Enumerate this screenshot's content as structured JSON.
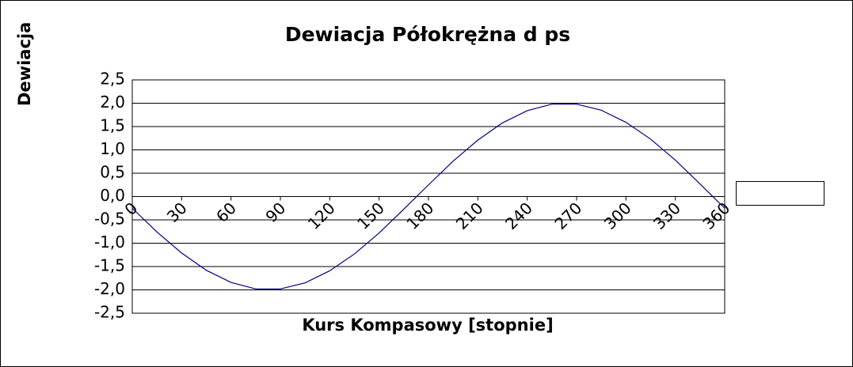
{
  "chart_data": {
    "type": "line",
    "title": "Dewiacja Półokrężna   d ps",
    "x_label": "Kurs Kompasowy  [stopnie]",
    "y_label": "Dewiacja",
    "x": [
      0,
      15,
      30,
      45,
      60,
      75,
      90,
      105,
      120,
      135,
      150,
      165,
      180,
      195,
      210,
      225,
      240,
      255,
      270,
      285,
      300,
      315,
      330,
      345,
      360
    ],
    "series": [
      {
        "color": "#000080",
        "values": [
          -0.25,
          -0.76,
          -1.21,
          -1.58,
          -1.84,
          -1.98,
          -1.98,
          -1.85,
          -1.59,
          -1.23,
          -0.78,
          -0.27,
          0.25,
          0.76,
          1.21,
          1.58,
          1.84,
          1.98,
          1.98,
          1.85,
          1.59,
          1.23,
          0.78,
          0.27,
          -0.25
        ]
      }
    ],
    "xlim": [
      0,
      360
    ],
    "xticks": [
      0,
      30,
      60,
      90,
      120,
      150,
      180,
      210,
      240,
      270,
      300,
      330,
      360
    ],
    "ylim": [
      -2.5,
      2.5
    ],
    "yticks": [
      {
        "value": -2.5,
        "label": "-2,5"
      },
      {
        "value": -2,
        "label": "-2,0"
      },
      {
        "value": -1.5,
        "label": "-1,5"
      },
      {
        "value": -1,
        "label": "-1,0"
      },
      {
        "value": -0.5,
        "label": "-0,5"
      },
      {
        "value": 0,
        "label": "0,0"
      },
      {
        "value": 0.5,
        "label": "0,5"
      },
      {
        "value": 1,
        "label": "1,0"
      },
      {
        "value": 1.5,
        "label": "1,5"
      },
      {
        "value": 2,
        "label": "2,0"
      },
      {
        "value": 2.5,
        "label": "2,5"
      }
    ],
    "grid": true
  }
}
